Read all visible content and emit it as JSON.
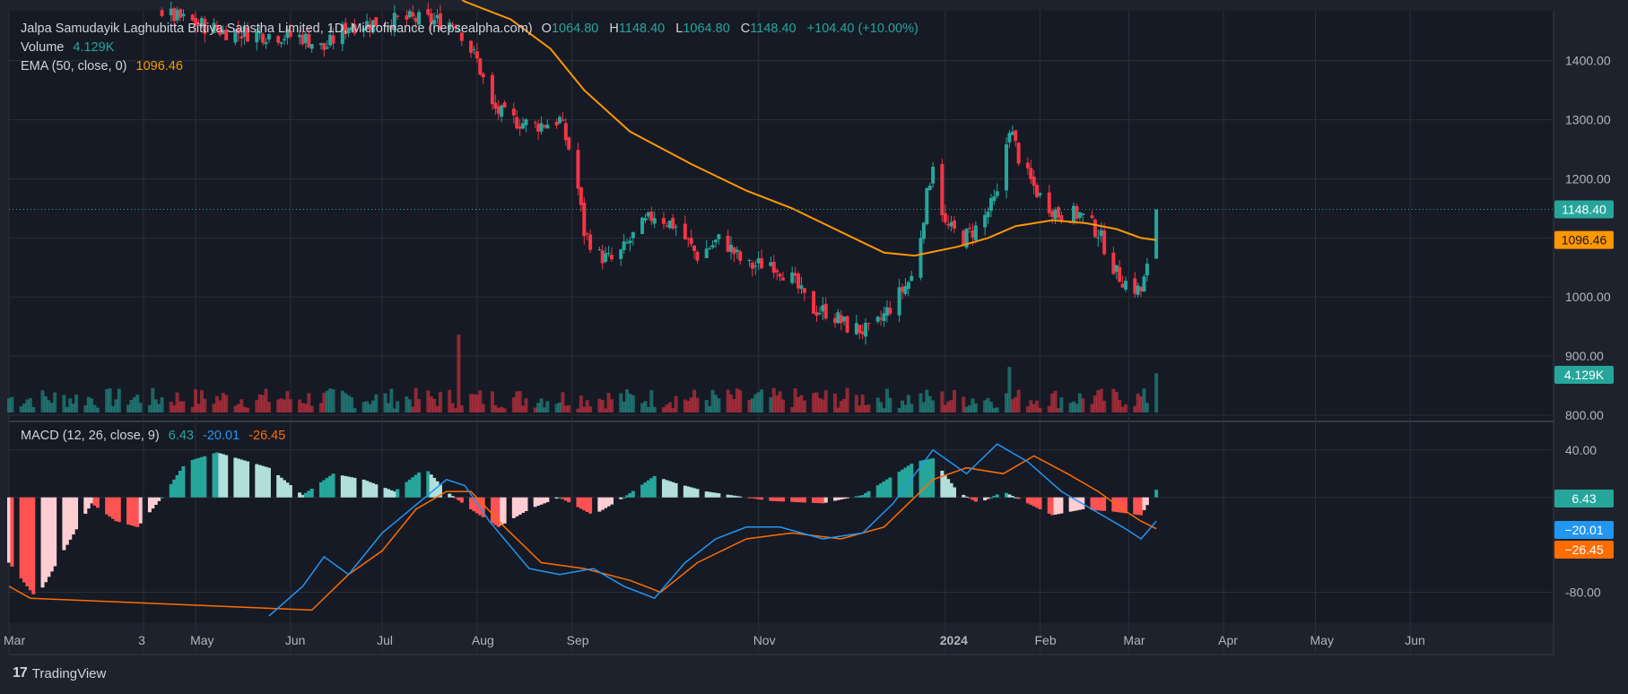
{
  "header": {
    "symbol_title": "Jalpa Samudayik Laghubitta Bittiya Sanstha Limited, 1D, Microfinance (nepsealpha.com)",
    "ohlc": {
      "o_label": "O",
      "o": "1064.80",
      "h_label": "H",
      "h": "1148.40",
      "l_label": "L",
      "l": "1064.80",
      "c_label": "C",
      "c": "1148.40",
      "change": "+104.40 (+10.00%)"
    },
    "volume_label": "Volume",
    "volume_value": "4.129K",
    "ema_label": "EMA (50, close, 0)",
    "ema_value": "1096.46",
    "macd_label": "MACD (12, 26, close, 9)",
    "macd_value": "6.43",
    "macd_line_value": "-20.01",
    "signal_value": "-26.45"
  },
  "badges": {
    "price": "1148.40",
    "ema": "1096.46",
    "volume": "4.129K",
    "hist": "6.43",
    "macd": "−20.01",
    "signal": "−26.45"
  },
  "colors": {
    "background": "#1e222d",
    "pane_background": "#161a25",
    "up": "#26a69a",
    "down": "#f23645",
    "ema": "#ff9800",
    "macd": "#2196f3",
    "signal": "#ff6d00",
    "grid": "#2a2e39"
  },
  "footer": {
    "brand": "TradingView",
    "logo_icon": "tradingview-logo-icon"
  },
  "chart_data": {
    "type": "candlestick",
    "price_axis": {
      "ticks": [
        "1400.00",
        "1300.00",
        "1200.00",
        "1100.00",
        "1000.00",
        "900.00",
        "800.00"
      ],
      "ylim": [
        800,
        1480
      ]
    },
    "time_axis": {
      "labels": [
        {
          "text": "Mar",
          "date": "2023-03-01",
          "bold": false
        },
        {
          "text": "3",
          "date": "2023-04-14",
          "bold": false
        },
        {
          "text": "May",
          "date": "2023-05-01",
          "bold": false
        },
        {
          "text": "Jun",
          "date": "2023-06-01",
          "bold": false
        },
        {
          "text": "Jul",
          "date": "2023-07-01",
          "bold": false
        },
        {
          "text": "Aug",
          "date": "2023-08-01",
          "bold": false
        },
        {
          "text": "Sep",
          "date": "2023-09-01",
          "bold": false
        },
        {
          "text": "Nov",
          "date": "2023-11-01",
          "bold": false
        },
        {
          "text": "2024",
          "date": "2024-01-01",
          "bold": true
        },
        {
          "text": "Feb",
          "date": "2024-02-01",
          "bold": false
        },
        {
          "text": "Mar",
          "date": "2024-03-01",
          "bold": false
        },
        {
          "text": "Apr",
          "date": "2024-04-01",
          "bold": false
        },
        {
          "text": "May",
          "date": "2024-05-01",
          "bold": false
        },
        {
          "text": "Jun",
          "date": "2024-06-01",
          "bold": false
        }
      ],
      "start": "2023-03-01",
      "end": "2024-06-15"
    },
    "price_waypoints": [
      [
        "2023-04-20",
        1480
      ],
      [
        "2023-05-10",
        1450
      ],
      [
        "2023-06-05",
        1440
      ],
      [
        "2023-06-12",
        1420
      ],
      [
        "2023-06-20",
        1460
      ],
      [
        "2023-07-10",
        1470
      ],
      [
        "2023-07-25",
        1465
      ],
      [
        "2023-08-01",
        1400
      ],
      [
        "2023-08-06",
        1320
      ],
      [
        "2023-08-12",
        1300
      ],
      [
        "2023-08-20",
        1290
      ],
      [
        "2023-08-28",
        1300
      ],
      [
        "2023-09-02",
        1220
      ],
      [
        "2023-09-05",
        1110
      ],
      [
        "2023-09-10",
        1070
      ],
      [
        "2023-09-15",
        1060
      ],
      [
        "2023-09-22",
        1110
      ],
      [
        "2023-09-28",
        1140
      ],
      [
        "2023-10-05",
        1120
      ],
      [
        "2023-10-12",
        1070
      ],
      [
        "2023-10-20",
        1100
      ],
      [
        "2023-10-28",
        1050
      ],
      [
        "2023-11-05",
        1060
      ],
      [
        "2023-11-12",
        1030
      ],
      [
        "2023-11-18",
        980
      ],
      [
        "2023-11-24",
        975
      ],
      [
        "2023-11-30",
        950
      ],
      [
        "2023-12-08",
        940
      ],
      [
        "2023-12-15",
        990
      ],
      [
        "2023-12-22",
        1040
      ],
      [
        "2023-12-25",
        1140
      ],
      [
        "2023-12-28",
        1230
      ],
      [
        "2024-01-01",
        1120
      ],
      [
        "2024-01-07",
        1100
      ],
      [
        "2024-01-12",
        1120
      ],
      [
        "2024-01-18",
        1170
      ],
      [
        "2024-01-22",
        1290
      ],
      [
        "2024-01-26",
        1220
      ],
      [
        "2024-02-01",
        1170
      ],
      [
        "2024-02-07",
        1140
      ],
      [
        "2024-02-14",
        1140
      ],
      [
        "2024-02-20",
        1110
      ],
      [
        "2024-02-26",
        1040
      ],
      [
        "2024-03-01",
        1020
      ],
      [
        "2024-03-05",
        1010
      ],
      [
        "2024-03-08",
        1064.8
      ]
    ],
    "last_candle": {
      "date": "2024-03-10",
      "open": 1064.8,
      "high": 1148.4,
      "low": 1064.8,
      "close": 1148.4
    },
    "ema_waypoints": [
      [
        "2023-07-15",
        1550
      ],
      [
        "2023-07-28",
        1500
      ],
      [
        "2023-08-12",
        1470
      ],
      [
        "2023-08-25",
        1420
      ],
      [
        "2023-09-05",
        1350
      ],
      [
        "2023-09-20",
        1280
      ],
      [
        "2023-10-10",
        1225
      ],
      [
        "2023-10-28",
        1180
      ],
      [
        "2023-11-12",
        1150
      ],
      [
        "2023-11-28",
        1110
      ],
      [
        "2023-12-12",
        1075
      ],
      [
        "2023-12-22",
        1070
      ],
      [
        "2024-01-05",
        1085
      ],
      [
        "2024-01-15",
        1100
      ],
      [
        "2024-01-24",
        1120
      ],
      [
        "2024-02-05",
        1130
      ],
      [
        "2024-02-16",
        1125
      ],
      [
        "2024-02-26",
        1115
      ],
      [
        "2024-03-05",
        1100
      ],
      [
        "2024-03-10",
        1096.46
      ]
    ],
    "volume_spikes": [
      [
        "2023-04-08",
        7.5
      ],
      [
        "2023-07-26",
        8.2
      ],
      [
        "2024-01-22",
        4.8
      ],
      [
        "2024-01-12",
        3.8
      ],
      [
        "2023-05-12",
        2.5
      ],
      [
        "2024-03-10",
        4.129
      ]
    ],
    "volume_max_axis": 8.5,
    "macd": {
      "ylim": [
        -100,
        55
      ],
      "ticks": [
        "40.00",
        "0.00",
        "-80.00"
      ],
      "hist_waypoints": [
        [
          "2023-03-01",
          -55
        ],
        [
          "2023-03-10",
          -85
        ],
        [
          "2023-03-20",
          -40
        ],
        [
          "2023-03-28",
          -5
        ],
        [
          "2023-04-05",
          -20
        ],
        [
          "2023-04-12",
          -25
        ],
        [
          "2023-04-20",
          0
        ],
        [
          "2023-04-28",
          30
        ],
        [
          "2023-05-08",
          38
        ],
        [
          "2023-05-25",
          25
        ],
        [
          "2023-06-05",
          2
        ],
        [
          "2023-06-15",
          20
        ],
        [
          "2023-06-25",
          15
        ],
        [
          "2023-07-05",
          5
        ],
        [
          "2023-07-15",
          25
        ],
        [
          "2023-07-22",
          5
        ],
        [
          "2023-07-30",
          -10
        ],
        [
          "2023-08-08",
          -25
        ],
        [
          "2023-08-18",
          -10
        ],
        [
          "2023-08-28",
          0
        ],
        [
          "2023-09-08",
          -15
        ],
        [
          "2023-09-18",
          0
        ],
        [
          "2023-09-28",
          18
        ],
        [
          "2023-10-05",
          12
        ],
        [
          "2023-10-15",
          5
        ],
        [
          "2023-10-28",
          0
        ],
        [
          "2023-11-05",
          -3
        ],
        [
          "2023-11-22",
          -5
        ],
        [
          "2023-12-05",
          2
        ],
        [
          "2023-12-22",
          30
        ],
        [
          "2023-12-28",
          33
        ],
        [
          "2024-01-05",
          5
        ],
        [
          "2024-01-12",
          -5
        ],
        [
          "2024-01-20",
          5
        ],
        [
          "2024-01-28",
          -5
        ],
        [
          "2024-02-05",
          -15
        ],
        [
          "2024-02-15",
          -10
        ],
        [
          "2024-02-25",
          -12
        ],
        [
          "2024-03-05",
          -15
        ],
        [
          "2024-03-10",
          6.43
        ]
      ],
      "macd_waypoints": [
        [
          "2023-05-25",
          -100
        ],
        [
          "2023-06-05",
          -75
        ],
        [
          "2023-06-12",
          -50
        ],
        [
          "2023-06-20",
          -65
        ],
        [
          "2023-07-01",
          -30
        ],
        [
          "2023-07-08",
          -15
        ],
        [
          "2023-07-15",
          0
        ],
        [
          "2023-07-22",
          15
        ],
        [
          "2023-07-28",
          10
        ],
        [
          "2023-08-05",
          -20
        ],
        [
          "2023-08-18",
          -60
        ],
        [
          "2023-08-28",
          -65
        ],
        [
          "2023-09-08",
          -60
        ],
        [
          "2023-09-18",
          -75
        ],
        [
          "2023-09-28",
          -85
        ],
        [
          "2023-10-08",
          -55
        ],
        [
          "2023-10-18",
          -35
        ],
        [
          "2023-10-28",
          -25
        ],
        [
          "2023-11-08",
          -25
        ],
        [
          "2023-11-22",
          -35
        ],
        [
          "2023-12-05",
          -30
        ],
        [
          "2023-12-15",
          -5
        ],
        [
          "2023-12-28",
          40
        ],
        [
          "2024-01-08",
          20
        ],
        [
          "2024-01-18",
          45
        ],
        [
          "2024-01-28",
          30
        ],
        [
          "2024-02-08",
          5
        ],
        [
          "2024-02-18",
          -10
        ],
        [
          "2024-02-28",
          -25
        ],
        [
          "2024-03-05",
          -35
        ],
        [
          "2024-03-10",
          -20.01
        ]
      ],
      "signal_waypoints": [
        [
          "2023-03-01",
          -75
        ],
        [
          "2023-03-08",
          -85
        ],
        [
          "2023-06-08",
          -95
        ],
        [
          "2023-06-20",
          -65
        ],
        [
          "2023-07-01",
          -45
        ],
        [
          "2023-07-12",
          -10
        ],
        [
          "2023-07-22",
          5
        ],
        [
          "2023-07-30",
          5
        ],
        [
          "2023-08-10",
          -25
        ],
        [
          "2023-08-22",
          -55
        ],
        [
          "2023-09-05",
          -60
        ],
        [
          "2023-09-20",
          -70
        ],
        [
          "2023-09-30",
          -80
        ],
        [
          "2023-10-12",
          -55
        ],
        [
          "2023-10-28",
          -35
        ],
        [
          "2023-11-12",
          -30
        ],
        [
          "2023-11-28",
          -35
        ],
        [
          "2023-12-12",
          -25
        ],
        [
          "2023-12-28",
          15
        ],
        [
          "2024-01-08",
          25
        ],
        [
          "2024-01-20",
          20
        ],
        [
          "2024-01-30",
          35
        ],
        [
          "2024-02-10",
          20
        ],
        [
          "2024-02-20",
          5
        ],
        [
          "2024-02-28",
          -10
        ],
        [
          "2024-03-05",
          -20
        ],
        [
          "2024-03-10",
          -26.45
        ]
      ]
    }
  }
}
